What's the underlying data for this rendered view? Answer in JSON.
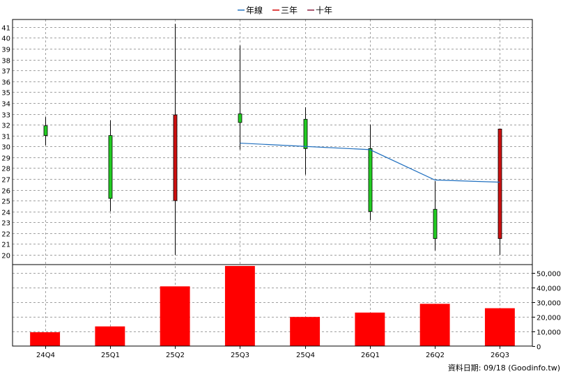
{
  "legend": [
    {
      "label": "年線",
      "color": "#1f6fbf"
    },
    {
      "label": "三年",
      "color": "#d40000"
    },
    {
      "label": "十年",
      "color": "#8b1a3a"
    }
  ],
  "footer": "資料日期: 09/18  (Goodinfo.tw)",
  "chart_data": {
    "type": "candlestick",
    "categories": [
      "24Q4",
      "25Q1",
      "25Q2",
      "25Q3",
      "25Q4",
      "26Q1",
      "26Q2",
      "26Q3"
    ],
    "price_axis": {
      "min": 20,
      "max": 41,
      "ticks": [
        20,
        21,
        22,
        23,
        24,
        25,
        26,
        27,
        28,
        29,
        30,
        31,
        32,
        33,
        34,
        35,
        36,
        37,
        38,
        39,
        40,
        41
      ]
    },
    "candles": [
      {
        "open": 31.0,
        "high": 32.7,
        "low": 30.1,
        "close": 31.9
      },
      {
        "open": 25.2,
        "high": 32.4,
        "low": 24.0,
        "close": 31.0
      },
      {
        "open": 32.9,
        "high": 41.3,
        "low": 20.0,
        "close": 25.0
      },
      {
        "open": 32.2,
        "high": 39.3,
        "low": 29.7,
        "close": 33.0
      },
      {
        "open": 29.8,
        "high": 33.6,
        "low": 27.4,
        "close": 32.5
      },
      {
        "open": 24.0,
        "high": 32.0,
        "low": 23.2,
        "close": 29.8
      },
      {
        "open": 21.5,
        "high": 26.8,
        "low": 20.4,
        "close": 24.2
      },
      {
        "open": 31.6,
        "high": 31.6,
        "low": 20.0,
        "close": 21.5
      }
    ],
    "line_series": {
      "name": "年線",
      "values": [
        null,
        null,
        null,
        30.3,
        30.0,
        29.7,
        26.9,
        26.7
      ]
    },
    "volume_axis": {
      "min": 0,
      "max": 55000,
      "ticks": [
        0,
        10000,
        20000,
        30000,
        40000,
        50000
      ],
      "tick_labels": [
        "0",
        "10,000",
        "20,000",
        "30,000",
        "40,000",
        "50,000"
      ]
    },
    "volume": [
      9500,
      13500,
      41000,
      55000,
      20000,
      23000,
      29000,
      26000
    ],
    "colors": {
      "up": "#22cc22",
      "down": "#cc1111",
      "volume": "#ff0000",
      "grid": "#a0a0a0"
    }
  }
}
